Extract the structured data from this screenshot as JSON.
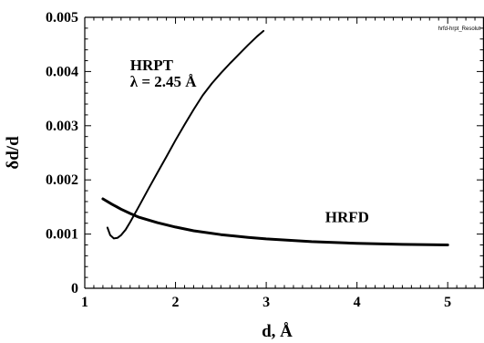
{
  "chart_data": {
    "type": "line",
    "xlabel": "d, Å",
    "ylabel": "δd/d",
    "xlim": [
      1,
      5.4
    ],
    "ylim": [
      0,
      0.005
    ],
    "x_ticks": [
      1,
      2,
      3,
      4,
      5
    ],
    "x_tick_labels": [
      "1",
      "2",
      "3",
      "4",
      "5"
    ],
    "y_ticks": [
      0,
      0.001,
      0.002,
      0.003,
      0.004,
      0.005
    ],
    "y_tick_labels": [
      "0",
      "0.001",
      "0.002",
      "0.003",
      "0.004",
      "0.005"
    ],
    "grid": false,
    "legend": "none",
    "corner_label": "hrfd-hrpt_Resolut",
    "annotations": [
      {
        "text": "HRPT",
        "x": 1.5,
        "y": 0.00402
      },
      {
        "text": "λ = 2.45 Å",
        "x": 1.5,
        "y": 0.00372
      },
      {
        "text": "HRFD",
        "x": 3.65,
        "y": 0.00122
      }
    ],
    "series": [
      {
        "label": "HRPT",
        "color": "#000000",
        "x": [
          1.25,
          1.28,
          1.32,
          1.36,
          1.4,
          1.45,
          1.5,
          1.6,
          1.7,
          1.8,
          1.9,
          2.0,
          2.1,
          2.2,
          2.3,
          2.4,
          2.5,
          2.6,
          2.7,
          2.8,
          2.9,
          2.97
        ],
        "y": [
          0.00112,
          0.00098,
          0.00092,
          0.00093,
          0.00098,
          0.00108,
          0.00122,
          0.00152,
          0.00183,
          0.00213,
          0.00243,
          0.00273,
          0.00302,
          0.0033,
          0.00356,
          0.00378,
          0.00397,
          0.00415,
          0.00432,
          0.00449,
          0.00465,
          0.00475
        ]
      },
      {
        "label": "HRFD",
        "color": "#000000",
        "x": [
          1.2,
          1.3,
          1.4,
          1.5,
          1.6,
          1.8,
          2.0,
          2.2,
          2.5,
          2.8,
          3.0,
          3.5,
          4.0,
          4.5,
          5.0
        ],
        "y": [
          0.00165,
          0.00155,
          0.00146,
          0.00138,
          0.00131,
          0.00121,
          0.00113,
          0.00106,
          0.00099,
          0.00094,
          0.00091,
          0.00086,
          0.00083,
          0.00081,
          0.0008
        ]
      }
    ]
  }
}
